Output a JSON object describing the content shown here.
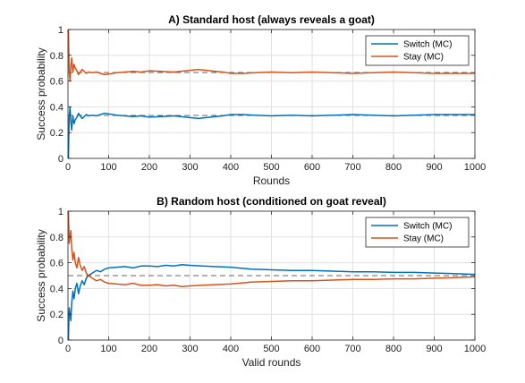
{
  "chart_data": [
    {
      "type": "line",
      "title": "A) Standard host (always reveals a goat)",
      "xlabel": "Rounds",
      "ylabel": "Success probability",
      "xlim": [
        0,
        1000
      ],
      "ylim": [
        0,
        1
      ],
      "xticks": [
        0,
        100,
        200,
        300,
        400,
        500,
        600,
        700,
        800,
        900,
        1000
      ],
      "yticks": [
        0,
        0.2,
        0.4,
        0.6,
        0.8,
        1
      ],
      "grid": true,
      "legend_position": "top-right",
      "reference_lines": [
        {
          "y": 0.6667,
          "style": "dashed",
          "color": "#333333"
        },
        {
          "y": 0.3333,
          "style": "dashed",
          "color": "#333333"
        }
      ],
      "series": [
        {
          "name": "Switch (MC)",
          "color": "#0072BD",
          "x": [
            1,
            3,
            5,
            7,
            9,
            12,
            15,
            18,
            22,
            26,
            30,
            35,
            40,
            45,
            50,
            60,
            70,
            80,
            90,
            100,
            110,
            120,
            140,
            160,
            180,
            200,
            230,
            260,
            290,
            320,
            350,
            380,
            400,
            430,
            460,
            500,
            550,
            600,
            650,
            700,
            750,
            800,
            850,
            900,
            950,
            1000
          ],
          "values": [
            0.0,
            0.33,
            0.4,
            0.29,
            0.22,
            0.33,
            0.27,
            0.3,
            0.32,
            0.35,
            0.33,
            0.31,
            0.325,
            0.34,
            0.33,
            0.335,
            0.33,
            0.34,
            0.35,
            0.345,
            0.34,
            0.335,
            0.33,
            0.325,
            0.33,
            0.32,
            0.325,
            0.33,
            0.32,
            0.31,
            0.32,
            0.33,
            0.34,
            0.34,
            0.335,
            0.33,
            0.335,
            0.33,
            0.335,
            0.34,
            0.335,
            0.33,
            0.335,
            0.34,
            0.34,
            0.34
          ]
        },
        {
          "name": "Stay (MC)",
          "color": "#D95319",
          "x": [
            1,
            3,
            5,
            7,
            9,
            12,
            15,
            18,
            22,
            26,
            30,
            35,
            40,
            45,
            50,
            60,
            70,
            80,
            90,
            100,
            110,
            120,
            140,
            160,
            180,
            200,
            230,
            260,
            290,
            320,
            350,
            380,
            400,
            430,
            460,
            500,
            550,
            600,
            650,
            700,
            750,
            800,
            850,
            900,
            950,
            1000
          ],
          "values": [
            1.0,
            0.67,
            0.6,
            0.71,
            0.78,
            0.67,
            0.73,
            0.7,
            0.68,
            0.65,
            0.67,
            0.69,
            0.675,
            0.66,
            0.67,
            0.665,
            0.67,
            0.66,
            0.65,
            0.655,
            0.66,
            0.665,
            0.67,
            0.675,
            0.67,
            0.68,
            0.675,
            0.67,
            0.68,
            0.69,
            0.68,
            0.67,
            0.66,
            0.66,
            0.665,
            0.67,
            0.665,
            0.67,
            0.665,
            0.66,
            0.665,
            0.67,
            0.665,
            0.66,
            0.66,
            0.66
          ]
        }
      ]
    },
    {
      "type": "line",
      "title": "B) Random host (conditioned on goat reveal)",
      "xlabel": "Valid rounds",
      "ylabel": "Success probability",
      "xlim": [
        0,
        1000
      ],
      "ylim": [
        0,
        1
      ],
      "xticks": [
        0,
        100,
        200,
        300,
        400,
        500,
        600,
        700,
        800,
        900,
        1000
      ],
      "yticks": [
        0,
        0.2,
        0.4,
        0.6,
        0.8,
        1
      ],
      "grid": true,
      "legend_position": "top-right",
      "reference_lines": [
        {
          "y": 0.5,
          "style": "dashed",
          "color": "#333333"
        }
      ],
      "series": [
        {
          "name": "Switch (MC)",
          "color": "#0072BD",
          "x": [
            1,
            3,
            5,
            7,
            9,
            12,
            15,
            18,
            22,
            26,
            30,
            35,
            40,
            45,
            50,
            60,
            70,
            80,
            90,
            100,
            120,
            140,
            160,
            180,
            200,
            220,
            240,
            260,
            280,
            300,
            330,
            360,
            400,
            450,
            500,
            550,
            600,
            650,
            700,
            750,
            800,
            850,
            900,
            950,
            1000
          ],
          "values": [
            0.0,
            0.25,
            0.2,
            0.15,
            0.28,
            0.38,
            0.32,
            0.4,
            0.44,
            0.36,
            0.42,
            0.46,
            0.43,
            0.48,
            0.5,
            0.52,
            0.54,
            0.53,
            0.55,
            0.56,
            0.565,
            0.57,
            0.56,
            0.575,
            0.575,
            0.57,
            0.58,
            0.575,
            0.585,
            0.58,
            0.575,
            0.57,
            0.565,
            0.55,
            0.545,
            0.54,
            0.54,
            0.535,
            0.53,
            0.53,
            0.525,
            0.525,
            0.52,
            0.515,
            0.51
          ]
        },
        {
          "name": "Stay (MC)",
          "color": "#D95319",
          "x": [
            1,
            3,
            5,
            7,
            9,
            12,
            15,
            18,
            22,
            26,
            30,
            35,
            40,
            45,
            50,
            60,
            70,
            80,
            90,
            100,
            120,
            140,
            160,
            180,
            200,
            220,
            240,
            260,
            280,
            300,
            330,
            360,
            400,
            450,
            500,
            550,
            600,
            650,
            700,
            750,
            800,
            850,
            900,
            950,
            1000
          ],
          "values": [
            1.0,
            0.75,
            0.8,
            0.85,
            0.72,
            0.62,
            0.68,
            0.6,
            0.56,
            0.64,
            0.58,
            0.54,
            0.57,
            0.52,
            0.5,
            0.48,
            0.46,
            0.47,
            0.45,
            0.44,
            0.435,
            0.43,
            0.44,
            0.425,
            0.425,
            0.43,
            0.42,
            0.425,
            0.415,
            0.42,
            0.425,
            0.43,
            0.435,
            0.45,
            0.455,
            0.46,
            0.46,
            0.465,
            0.47,
            0.47,
            0.475,
            0.475,
            0.48,
            0.485,
            0.49
          ]
        }
      ]
    }
  ]
}
